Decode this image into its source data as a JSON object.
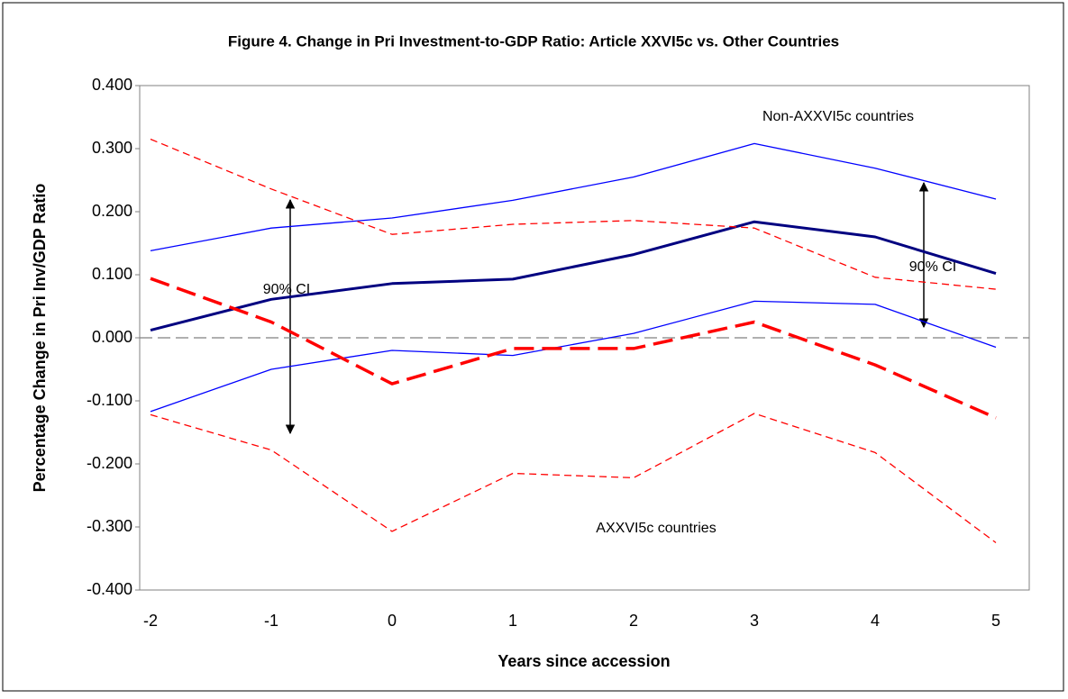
{
  "chart_data": {
    "type": "line",
    "title": "Figure 4. Change in Pri Investment-to-GDP Ratio: Article XXVI5c vs. Other Countries",
    "x_label": "Years since accession",
    "y_label": "Percentage Change in Pri Inv/GDP Ratio",
    "categories": [
      "-2",
      "-1",
      "0",
      "1",
      "2",
      "3",
      "4",
      "5"
    ],
    "ylim": [
      -0.4,
      0.4
    ],
    "yticks": [
      {
        "value": -0.4,
        "label": "-0.400"
      },
      {
        "value": -0.3,
        "label": "-0.300"
      },
      {
        "value": -0.2,
        "label": "-0.200"
      },
      {
        "value": -0.1,
        "label": "-0.100"
      },
      {
        "value": 0,
        "label": "0.000"
      },
      {
        "value": 0.1,
        "label": "0.100"
      },
      {
        "value": 0.2,
        "label": "0.200"
      },
      {
        "value": 0.3,
        "label": "0.300"
      },
      {
        "value": 0.4,
        "label": "0.400"
      }
    ],
    "zero_line": true,
    "series": [
      {
        "color": "#000080",
        "width": 3,
        "dash": false,
        "values": [
          0.012,
          0.061,
          0.086,
          0.093,
          0.132,
          0.184,
          0.16,
          0.102
        ]
      },
      {
        "color": "#0000ff",
        "width": 1.3,
        "dash": false,
        "values": [
          0.138,
          0.174,
          0.19,
          0.218,
          0.255,
          0.308,
          0.269,
          0.22
        ]
      },
      {
        "color": "#0000ff",
        "width": 1.3,
        "dash": false,
        "values": [
          -0.117,
          -0.05,
          -0.02,
          -0.028,
          0.007,
          0.058,
          0.053,
          -0.015
        ]
      },
      {
        "color": "#ff0000",
        "width": 3.5,
        "dash": true,
        "values": [
          0.094,
          0.025,
          -0.073,
          -0.017,
          -0.017,
          0.025,
          -0.043,
          -0.127
        ]
      },
      {
        "color": "#ff0000",
        "width": 1.3,
        "dash": true,
        "values": [
          0.315,
          0.236,
          0.164,
          0.18,
          0.186,
          0.174,
          0.096,
          0.077
        ]
      },
      {
        "color": "#ff0000",
        "width": 1.3,
        "dash": true,
        "values": [
          -0.122,
          -0.178,
          -0.307,
          -0.215,
          -0.222,
          -0.12,
          -0.182,
          -0.325
        ]
      }
    ],
    "annotations": [
      "Non-AXXVI5c countries",
      "AXXVI5c countries",
      "90% CI",
      "90% CI"
    ]
  }
}
